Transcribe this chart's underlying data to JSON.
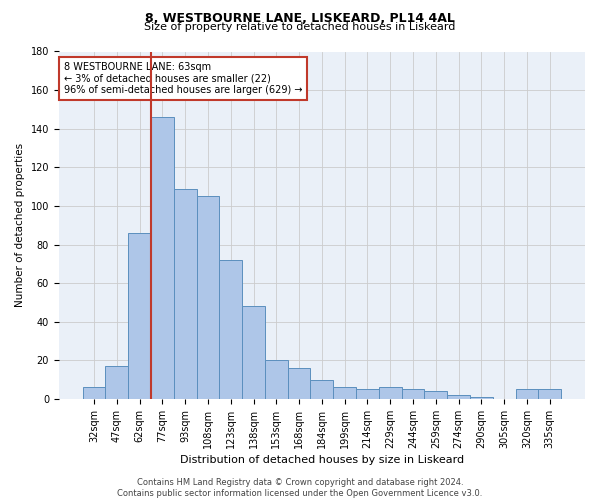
{
  "title1": "8, WESTBOURNE LANE, LISKEARD, PL14 4AL",
  "title2": "Size of property relative to detached houses in Liskeard",
  "xlabel": "Distribution of detached houses by size in Liskeard",
  "ylabel": "Number of detached properties",
  "categories": [
    "32sqm",
    "47sqm",
    "62sqm",
    "77sqm",
    "93sqm",
    "108sqm",
    "123sqm",
    "138sqm",
    "153sqm",
    "168sqm",
    "184sqm",
    "199sqm",
    "214sqm",
    "229sqm",
    "244sqm",
    "259sqm",
    "274sqm",
    "290sqm",
    "305sqm",
    "320sqm",
    "335sqm"
  ],
  "values": [
    6,
    17,
    86,
    146,
    109,
    105,
    72,
    48,
    20,
    16,
    10,
    6,
    5,
    6,
    5,
    4,
    2,
    1,
    0,
    5,
    5
  ],
  "bar_color": "#aec6e8",
  "bar_edge_color": "#5b8fbe",
  "vline_color": "#c0392b",
  "annotation_text": "8 WESTBOURNE LANE: 63sqm\n← 3% of detached houses are smaller (22)\n96% of semi-detached houses are larger (629) →",
  "annotation_box_color": "white",
  "annotation_box_edge_color": "#c0392b",
  "ylim": [
    0,
    180
  ],
  "yticks": [
    0,
    20,
    40,
    60,
    80,
    100,
    120,
    140,
    160,
    180
  ],
  "grid_color": "#cccccc",
  "bg_color": "#eaf0f8",
  "footer": "Contains HM Land Registry data © Crown copyright and database right 2024.\nContains public sector information licensed under the Open Government Licence v3.0.",
  "title1_fontsize": 9,
  "title2_fontsize": 8,
  "xlabel_fontsize": 8,
  "ylabel_fontsize": 7.5,
  "tick_fontsize": 7,
  "footer_fontsize": 6,
  "ann_fontsize": 7
}
